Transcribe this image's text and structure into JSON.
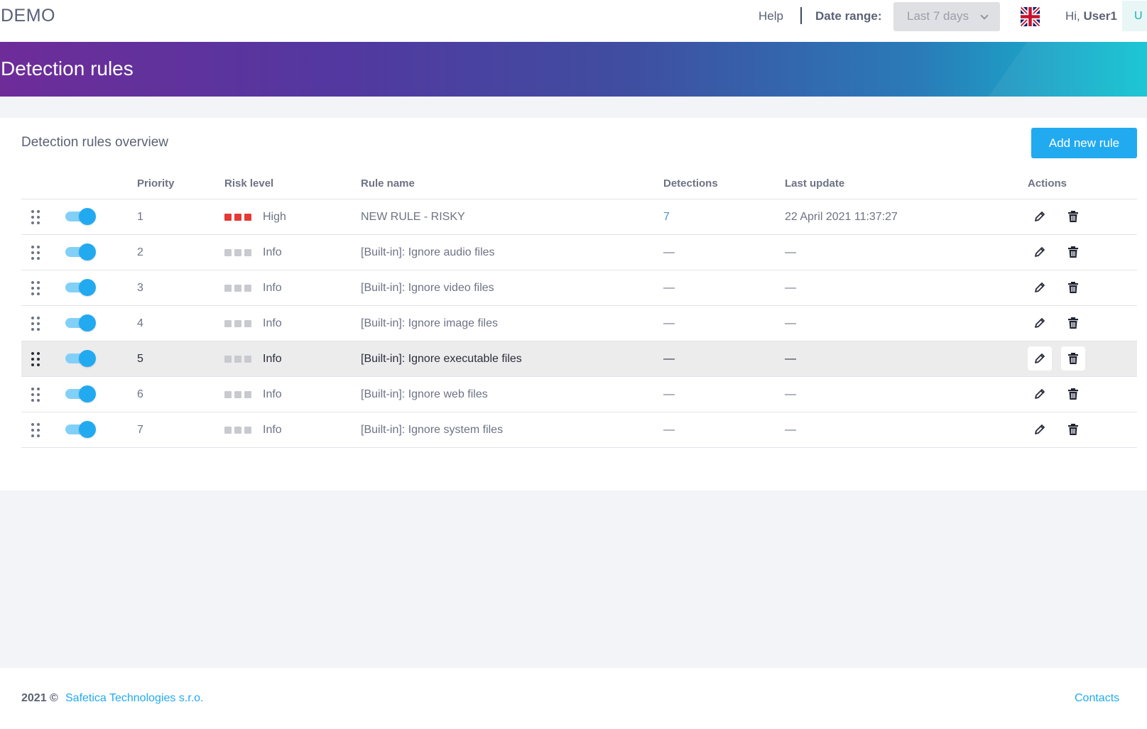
{
  "app": {
    "logo": "DEMO"
  },
  "header": {
    "help": "Help",
    "date_range_label": "Date range:",
    "date_range_value": "Last 7 days",
    "greeting_prefix": "Hi,",
    "user": "User1",
    "avatar_initial": "U"
  },
  "banner": {
    "title": "Detection rules"
  },
  "card": {
    "title": "Detection rules overview",
    "add_button": "Add new rule",
    "columns": {
      "priority": "Priority",
      "risk": "Risk level",
      "name": "Rule name",
      "detections": "Detections",
      "last_update": "Last update",
      "actions": "Actions"
    },
    "rows": [
      {
        "priority": "1",
        "risk_level": "High",
        "name": "NEW RULE - RISKY",
        "detections": "7",
        "last_update": "22 April 2021 11:37:27",
        "enabled": true
      },
      {
        "priority": "2",
        "risk_level": "Info",
        "name": "[Built-in]: Ignore audio files",
        "detections": "—",
        "last_update": "—",
        "enabled": true
      },
      {
        "priority": "3",
        "risk_level": "Info",
        "name": "[Built-in]: Ignore video files",
        "detections": "—",
        "last_update": "—",
        "enabled": true
      },
      {
        "priority": "4",
        "risk_level": "Info",
        "name": "[Built-in]: Ignore image files",
        "detections": "—",
        "last_update": "—",
        "enabled": true
      },
      {
        "priority": "5",
        "risk_level": "Info",
        "name": "[Built-in]: Ignore executable files",
        "detections": "—",
        "last_update": "—",
        "enabled": true
      },
      {
        "priority": "6",
        "risk_level": "Info",
        "name": "[Built-in]: Ignore web files",
        "detections": "—",
        "last_update": "—",
        "enabled": true
      },
      {
        "priority": "7",
        "risk_level": "Info",
        "name": "[Built-in]: Ignore system files",
        "detections": "—",
        "last_update": "—",
        "enabled": true
      }
    ]
  },
  "colors": {
    "accent": "#22aaf0",
    "risk_high": "#e53935",
    "risk_inactive": "#c9cad0"
  },
  "footer": {
    "year": "2021 ©",
    "company": "Safetica Technologies s.r.o.",
    "contacts": "Contacts"
  }
}
